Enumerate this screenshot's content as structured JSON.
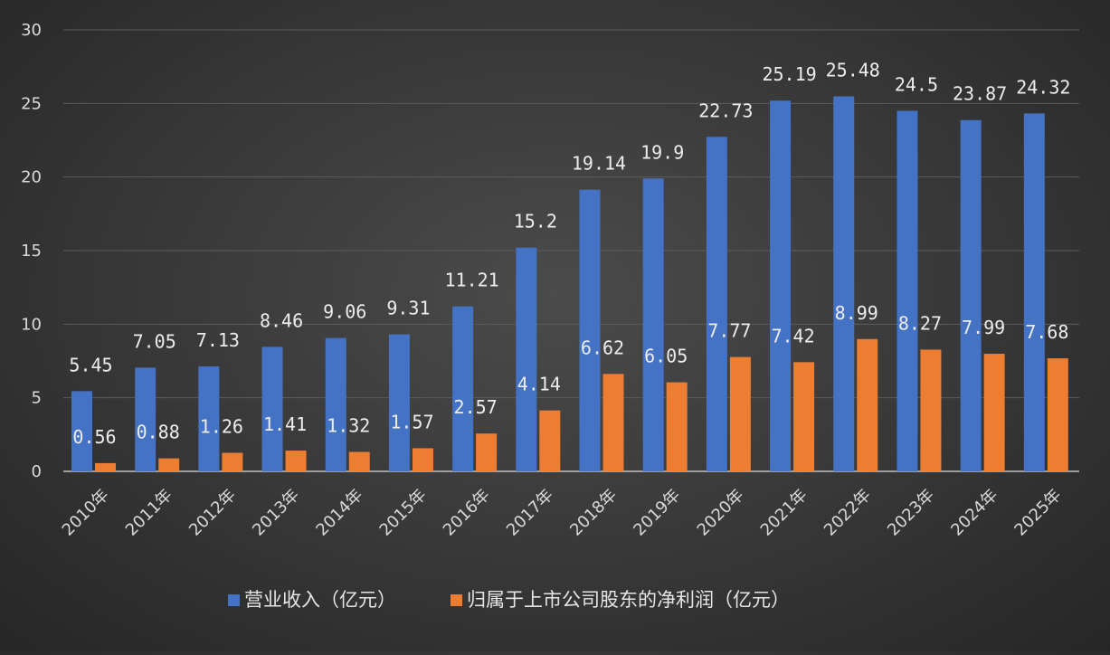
{
  "chart_data": {
    "type": "bar",
    "categories": [
      "2010年",
      "2011年",
      "2012年",
      "2013年",
      "2014年",
      "2015年",
      "2016年",
      "2017年",
      "2018年",
      "2019年",
      "2020年",
      "2021年",
      "2022年",
      "2023年",
      "2024年",
      "2025年"
    ],
    "series": [
      {
        "name": "营业收入（亿元）",
        "color": "#4472c4",
        "values": [
          5.45,
          7.05,
          7.13,
          8.46,
          9.06,
          9.31,
          11.21,
          15.2,
          19.14,
          19.9,
          22.73,
          25.19,
          25.48,
          24.5,
          23.87,
          24.32
        ],
        "labels": [
          "5.45",
          "7.05",
          "7.13",
          "8.46",
          "9.06",
          "9.31",
          "11.21",
          "15.2",
          "19.14",
          "19.9",
          "22.73",
          "25.19",
          "25.48",
          "24.5",
          "23.87",
          "24.32"
        ]
      },
      {
        "name": "归属于上市公司股东的净利润（亿元）",
        "color": "#ed7d31",
        "values": [
          0.56,
          0.88,
          1.26,
          1.41,
          1.32,
          1.57,
          2.57,
          4.14,
          6.62,
          6.05,
          7.77,
          7.42,
          8.99,
          8.27,
          7.99,
          7.68
        ],
        "labels": [
          "0.56",
          "0.88",
          "1.26",
          "1.41",
          "1.32",
          "1.57",
          "2.57",
          "4.14",
          "6.62",
          "6.05",
          "7.77",
          "7.42",
          "8.99",
          "8.27",
          "7.99",
          "7.68"
        ]
      }
    ],
    "yticks": [
      "0",
      "5",
      "10",
      "15",
      "20",
      "25",
      "30"
    ],
    "ylim": [
      0,
      30
    ],
    "grid": true,
    "legend": "bottom",
    "title": "",
    "xlabel": "",
    "ylabel": ""
  }
}
